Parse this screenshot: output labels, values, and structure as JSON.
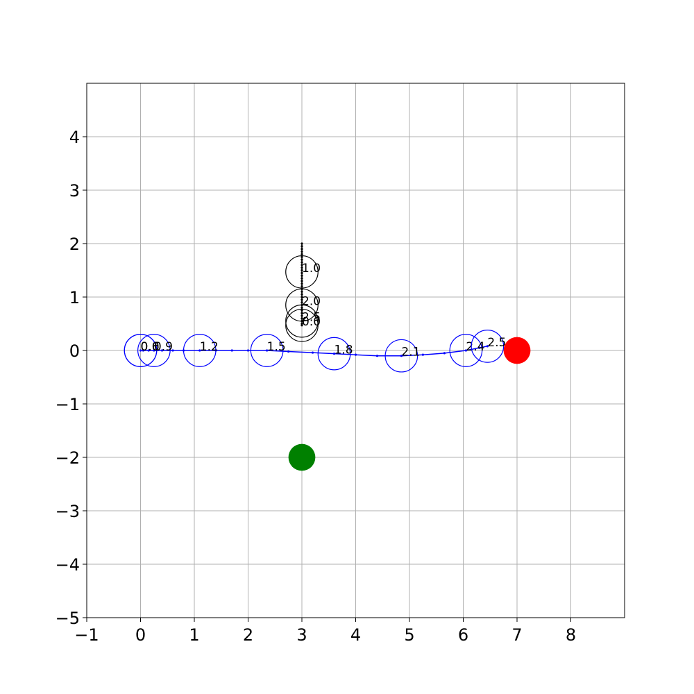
{
  "chart_data": {
    "type": "scatter",
    "title": "",
    "xlabel": "",
    "ylabel": "",
    "xlim": [
      -1,
      9
    ],
    "ylim": [
      -5,
      5
    ],
    "xticks": [
      -1,
      0,
      1,
      2,
      3,
      4,
      5,
      6,
      7,
      8
    ],
    "yticks": [
      -5,
      -4,
      -3,
      -2,
      -1,
      0,
      1,
      2,
      3,
      4
    ],
    "xtick_labels": [
      "−1",
      "0",
      "1",
      "2",
      "3",
      "4",
      "5",
      "6",
      "7",
      "8"
    ],
    "ytick_labels": [
      "−5",
      "−4",
      "−3",
      "−2",
      "−1",
      "0",
      "1",
      "2",
      "3",
      "4"
    ],
    "grid": true,
    "colors": {
      "blue_agent": "#0000ff",
      "black_agent": "#000000",
      "goal_marker": "#ff0000",
      "start_marker": "#008000",
      "grid": "#b0b0b0"
    },
    "markers": [
      {
        "x": 7,
        "y": 0,
        "color": "#ff0000",
        "radius": 0.25
      },
      {
        "x": 3,
        "y": -2,
        "color": "#008000",
        "radius": 0.25
      }
    ],
    "series": [
      {
        "color": "#0000ff",
        "radius": 0.3,
        "path": [
          {
            "x": 0.0,
            "y": 0.0
          },
          {
            "x": 0.05,
            "y": 0.0
          },
          {
            "x": 0.15,
            "y": 0.0
          },
          {
            "x": 0.25,
            "y": 0.0
          },
          {
            "x": 0.4,
            "y": 0.0
          },
          {
            "x": 0.6,
            "y": 0.0
          },
          {
            "x": 0.8,
            "y": 0.0
          },
          {
            "x": 1.1,
            "y": 0.0
          },
          {
            "x": 1.4,
            "y": 0.0
          },
          {
            "x": 1.7,
            "y": 0.0
          },
          {
            "x": 2.0,
            "y": 0.0
          },
          {
            "x": 2.35,
            "y": 0.0
          },
          {
            "x": 2.75,
            "y": -0.02
          },
          {
            "x": 3.2,
            "y": -0.04
          },
          {
            "x": 3.6,
            "y": -0.06
          },
          {
            "x": 4.0,
            "y": -0.08
          },
          {
            "x": 4.4,
            "y": -0.1
          },
          {
            "x": 4.85,
            "y": -0.1
          },
          {
            "x": 5.25,
            "y": -0.08
          },
          {
            "x": 5.65,
            "y": -0.05
          },
          {
            "x": 6.05,
            "y": 0.0
          },
          {
            "x": 6.3,
            "y": 0.05
          },
          {
            "x": 6.45,
            "y": 0.08
          }
        ],
        "snapshots": [
          {
            "t": "0.0",
            "x": 0.0,
            "y": 0.0
          },
          {
            "t": "0.6",
            "x": 0.0,
            "y": 0.0
          },
          {
            "t": "0.9",
            "x": 0.25,
            "y": 0.0
          },
          {
            "t": "1.2",
            "x": 1.1,
            "y": 0.0
          },
          {
            "t": "1.5",
            "x": 2.35,
            "y": 0.0
          },
          {
            "t": "1.8",
            "x": 3.6,
            "y": -0.06
          },
          {
            "t": "2.1",
            "x": 4.85,
            "y": -0.1
          },
          {
            "t": "2.4",
            "x": 6.05,
            "y": 0.0
          },
          {
            "t": "2.5",
            "x": 6.45,
            "y": 0.08
          }
        ]
      },
      {
        "color": "#000000",
        "radius": 0.3,
        "path": [
          {
            "x": 3.0,
            "y": 2.0
          },
          {
            "x": 3.0,
            "y": 1.95
          },
          {
            "x": 3.0,
            "y": 1.9
          },
          {
            "x": 3.0,
            "y": 1.85
          },
          {
            "x": 3.0,
            "y": 1.8
          },
          {
            "x": 3.0,
            "y": 1.75
          },
          {
            "x": 3.0,
            "y": 1.7
          },
          {
            "x": 3.0,
            "y": 1.65
          },
          {
            "x": 3.0,
            "y": 1.6
          },
          {
            "x": 3.0,
            "y": 1.55
          },
          {
            "x": 3.0,
            "y": 1.5
          },
          {
            "x": 3.0,
            "y": 1.45
          },
          {
            "x": 3.0,
            "y": 1.4
          },
          {
            "x": 3.0,
            "y": 1.35
          },
          {
            "x": 3.0,
            "y": 1.3
          },
          {
            "x": 3.0,
            "y": 1.25
          },
          {
            "x": 3.0,
            "y": 1.2
          },
          {
            "x": 3.0,
            "y": 1.15
          },
          {
            "x": 3.0,
            "y": 1.1
          },
          {
            "x": 3.0,
            "y": 1.05
          },
          {
            "x": 3.0,
            "y": 1.0
          },
          {
            "x": 3.0,
            "y": 0.95
          },
          {
            "x": 3.0,
            "y": 0.9
          },
          {
            "x": 3.0,
            "y": 0.85
          },
          {
            "x": 3.0,
            "y": 0.8
          },
          {
            "x": 3.0,
            "y": 0.75
          },
          {
            "x": 3.0,
            "y": 0.7
          },
          {
            "x": 3.0,
            "y": 0.65
          },
          {
            "x": 3.0,
            "y": 0.6
          },
          {
            "x": 3.0,
            "y": 0.55
          },
          {
            "x": 3.0,
            "y": 0.5
          },
          {
            "x": 3.0,
            "y": 0.47
          }
        ],
        "snapshots": [
          {
            "t": "1.0",
            "x": 3.0,
            "y": 1.47
          },
          {
            "t": "2.0",
            "x": 3.0,
            "y": 0.85
          },
          {
            "t": "2.5",
            "x": 3.0,
            "y": 0.55
          },
          {
            "t": "0.0",
            "x": 3.0,
            "y": 0.47
          }
        ]
      }
    ]
  }
}
